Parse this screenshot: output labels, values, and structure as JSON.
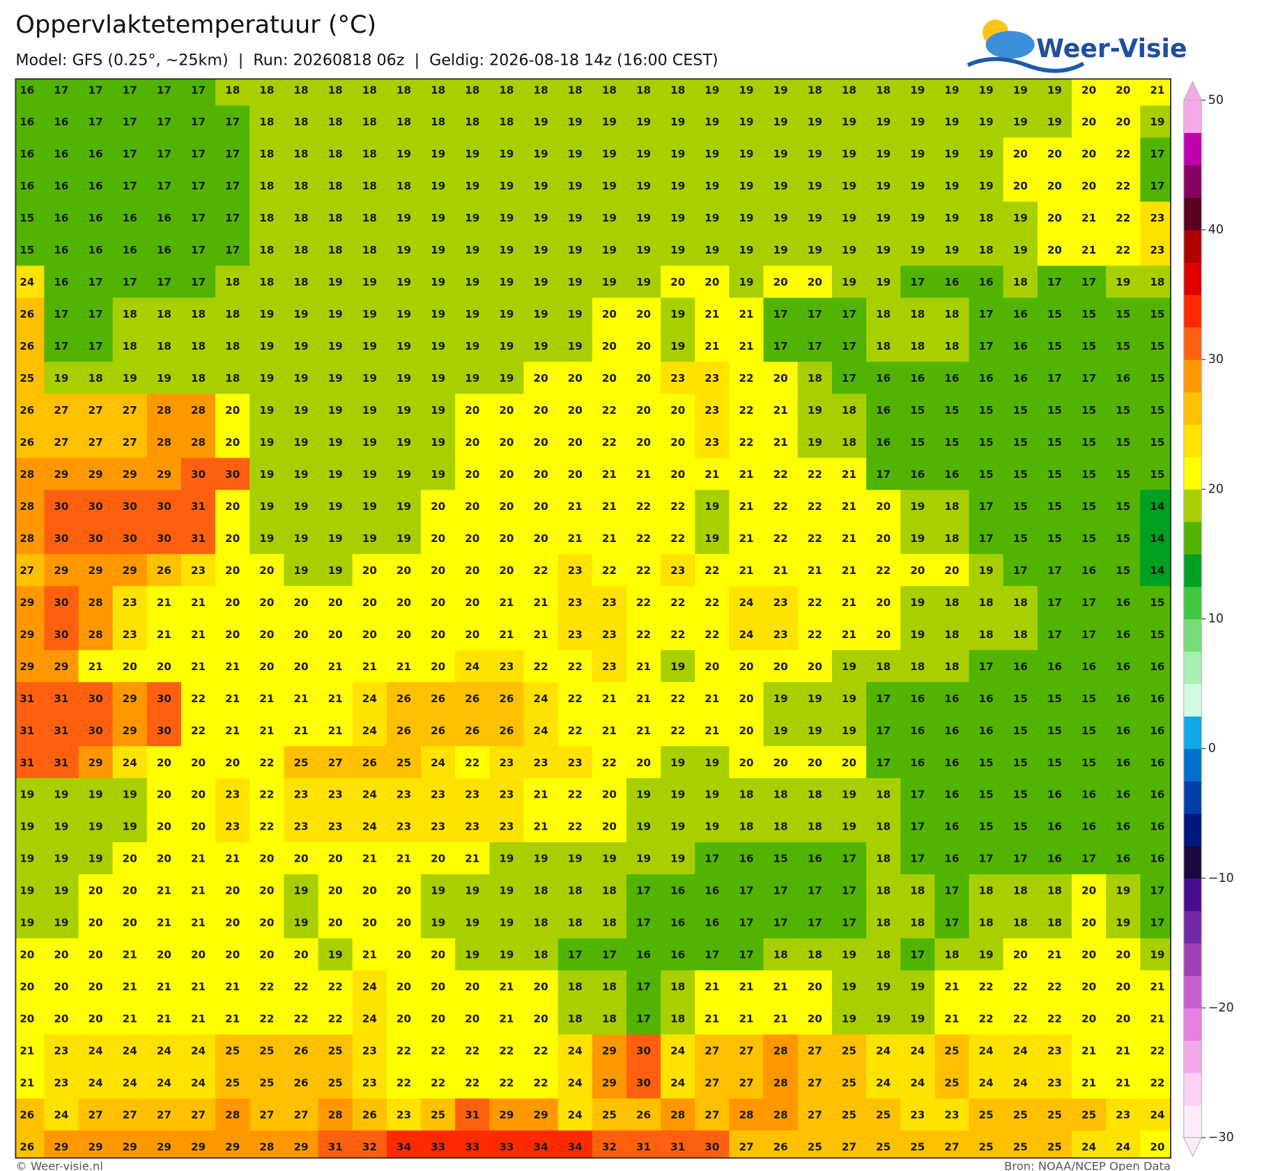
{
  "header": {
    "title": "Oppervlaktetemperatuur (°C)",
    "subtitle": "Model: GFS (0.25°, ~25km)  |  Run: 20260818 06z  |  Geldig: 2026-08-18 14z (16:00 CEST)",
    "logo": "Weer-Visie"
  },
  "grid": {
    "rows": [
      [
        16,
        17,
        17,
        17,
        17,
        17,
        18,
        18,
        18,
        18,
        18,
        18,
        18,
        18,
        18,
        18,
        18,
        18,
        18,
        18,
        19,
        19,
        19,
        18,
        18,
        18,
        19,
        19,
        19,
        19,
        19,
        20,
        20,
        21
      ],
      [
        16,
        16,
        17,
        17,
        17,
        17,
        17,
        18,
        18,
        18,
        18,
        18,
        18,
        18,
        18,
        19,
        19,
        19,
        19,
        19,
        19,
        19,
        19,
        19,
        19,
        19,
        19,
        19,
        19,
        19,
        19,
        20,
        20,
        19
      ],
      [
        16,
        16,
        16,
        17,
        17,
        17,
        17,
        18,
        18,
        18,
        18,
        19,
        19,
        19,
        19,
        19,
        19,
        19,
        19,
        19,
        19,
        19,
        19,
        19,
        19,
        19,
        19,
        19,
        19,
        20,
        20,
        20,
        22,
        17
      ],
      [
        16,
        16,
        16,
        17,
        17,
        17,
        17,
        18,
        18,
        18,
        18,
        18,
        19,
        19,
        19,
        19,
        19,
        19,
        19,
        19,
        19,
        19,
        19,
        19,
        19,
        19,
        19,
        19,
        19,
        20,
        20,
        20,
        22,
        17
      ],
      [
        15,
        16,
        16,
        16,
        16,
        17,
        17,
        18,
        18,
        18,
        18,
        19,
        19,
        19,
        19,
        19,
        19,
        19,
        19,
        19,
        19,
        19,
        19,
        19,
        19,
        19,
        19,
        19,
        18,
        19,
        20,
        21,
        22,
        23
      ],
      [
        15,
        16,
        16,
        16,
        16,
        17,
        17,
        18,
        18,
        18,
        18,
        19,
        19,
        19,
        19,
        19,
        19,
        19,
        19,
        19,
        19,
        19,
        19,
        19,
        19,
        19,
        19,
        19,
        18,
        19,
        20,
        21,
        22,
        23
      ],
      [
        24,
        16,
        17,
        17,
        17,
        17,
        18,
        18,
        18,
        19,
        19,
        19,
        19,
        19,
        19,
        19,
        19,
        19,
        19,
        20,
        20,
        19,
        20,
        20,
        19,
        19,
        17,
        16,
        16,
        18,
        17,
        17,
        19,
        18
      ],
      [
        26,
        17,
        17,
        18,
        18,
        18,
        18,
        19,
        19,
        19,
        19,
        19,
        19,
        19,
        19,
        19,
        19,
        20,
        20,
        19,
        21,
        21,
        17,
        17,
        17,
        18,
        18,
        18,
        17,
        16,
        15,
        15,
        15,
        15
      ],
      [
        26,
        17,
        17,
        18,
        18,
        18,
        18,
        19,
        19,
        19,
        19,
        19,
        19,
        19,
        19,
        19,
        19,
        20,
        20,
        19,
        21,
        21,
        17,
        17,
        17,
        18,
        18,
        18,
        17,
        16,
        15,
        15,
        15,
        15
      ],
      [
        25,
        19,
        18,
        19,
        19,
        18,
        18,
        19,
        19,
        19,
        19,
        19,
        19,
        19,
        19,
        20,
        20,
        20,
        20,
        23,
        23,
        22,
        20,
        18,
        17,
        16,
        16,
        16,
        16,
        16,
        17,
        17,
        16,
        15
      ],
      [
        26,
        27,
        27,
        27,
        28,
        28,
        20,
        19,
        19,
        19,
        19,
        19,
        19,
        20,
        20,
        20,
        20,
        22,
        20,
        20,
        23,
        22,
        21,
        19,
        18,
        16,
        15,
        15,
        15,
        15,
        15,
        15,
        15,
        15
      ],
      [
        26,
        27,
        27,
        27,
        28,
        28,
        20,
        19,
        19,
        19,
        19,
        19,
        19,
        20,
        20,
        20,
        20,
        22,
        20,
        20,
        23,
        22,
        21,
        19,
        18,
        16,
        15,
        15,
        15,
        15,
        15,
        15,
        15,
        15
      ],
      [
        28,
        29,
        29,
        29,
        29,
        30,
        30,
        19,
        19,
        19,
        19,
        19,
        19,
        20,
        20,
        20,
        20,
        21,
        21,
        20,
        21,
        21,
        22,
        22,
        21,
        17,
        16,
        16,
        15,
        15,
        15,
        15,
        15,
        15
      ],
      [
        28,
        30,
        30,
        30,
        30,
        31,
        20,
        19,
        19,
        19,
        19,
        19,
        20,
        20,
        20,
        20,
        21,
        21,
        22,
        22,
        19,
        21,
        22,
        22,
        21,
        20,
        19,
        18,
        17,
        15,
        15,
        15,
        15,
        14
      ],
      [
        28,
        30,
        30,
        30,
        30,
        31,
        20,
        19,
        19,
        19,
        19,
        19,
        20,
        20,
        20,
        20,
        21,
        21,
        22,
        22,
        19,
        21,
        22,
        22,
        21,
        20,
        19,
        18,
        17,
        15,
        15,
        15,
        15,
        14
      ],
      [
        27,
        29,
        29,
        29,
        26,
        23,
        20,
        20,
        19,
        19,
        20,
        20,
        20,
        20,
        20,
        22,
        23,
        22,
        22,
        23,
        22,
        21,
        21,
        21,
        21,
        22,
        20,
        20,
        19,
        17,
        17,
        16,
        15,
        14
      ],
      [
        29,
        30,
        28,
        23,
        21,
        21,
        20,
        20,
        20,
        20,
        20,
        20,
        20,
        20,
        21,
        21,
        23,
        23,
        22,
        22,
        22,
        24,
        23,
        22,
        21,
        20,
        19,
        18,
        18,
        18,
        17,
        17,
        16,
        15
      ],
      [
        29,
        30,
        28,
        23,
        21,
        21,
        20,
        20,
        20,
        20,
        20,
        20,
        20,
        20,
        21,
        21,
        23,
        23,
        22,
        22,
        22,
        24,
        23,
        22,
        21,
        20,
        19,
        18,
        18,
        18,
        17,
        17,
        16,
        15
      ],
      [
        29,
        29,
        21,
        20,
        20,
        21,
        21,
        20,
        20,
        21,
        21,
        21,
        20,
        24,
        23,
        22,
        22,
        23,
        21,
        19,
        20,
        20,
        20,
        20,
        19,
        18,
        18,
        18,
        17,
        16,
        16,
        16,
        16,
        16
      ],
      [
        31,
        31,
        30,
        29,
        30,
        22,
        21,
        21,
        21,
        21,
        24,
        26,
        26,
        26,
        26,
        24,
        22,
        21,
        21,
        22,
        21,
        20,
        19,
        19,
        19,
        17,
        16,
        16,
        16,
        15,
        15,
        15,
        16,
        16
      ],
      [
        31,
        31,
        30,
        29,
        30,
        22,
        21,
        21,
        21,
        21,
        24,
        26,
        26,
        26,
        26,
        24,
        22,
        21,
        21,
        22,
        21,
        20,
        19,
        19,
        19,
        17,
        16,
        16,
        16,
        15,
        15,
        15,
        16,
        16
      ],
      [
        31,
        31,
        29,
        24,
        20,
        20,
        20,
        22,
        25,
        27,
        26,
        25,
        24,
        22,
        23,
        23,
        23,
        22,
        20,
        19,
        19,
        20,
        20,
        20,
        20,
        17,
        16,
        16,
        15,
        15,
        15,
        15,
        16,
        16
      ],
      [
        19,
        19,
        19,
        19,
        20,
        20,
        23,
        22,
        23,
        23,
        24,
        23,
        23,
        23,
        23,
        21,
        22,
        20,
        19,
        19,
        19,
        18,
        18,
        18,
        19,
        18,
        17,
        16,
        15,
        15,
        16,
        16,
        16,
        16
      ],
      [
        19,
        19,
        19,
        19,
        20,
        20,
        23,
        22,
        23,
        23,
        24,
        23,
        23,
        23,
        23,
        21,
        22,
        20,
        19,
        19,
        19,
        18,
        18,
        18,
        19,
        18,
        17,
        16,
        15,
        15,
        16,
        16,
        16,
        16
      ],
      [
        19,
        19,
        19,
        20,
        20,
        21,
        21,
        20,
        20,
        20,
        21,
        21,
        20,
        21,
        19,
        19,
        19,
        19,
        19,
        19,
        17,
        16,
        15,
        16,
        17,
        18,
        17,
        16,
        17,
        17,
        16,
        17,
        16,
        16
      ],
      [
        19,
        19,
        20,
        20,
        21,
        21,
        20,
        20,
        19,
        20,
        20,
        20,
        19,
        19,
        19,
        18,
        18,
        18,
        17,
        16,
        16,
        17,
        17,
        17,
        17,
        18,
        18,
        17,
        18,
        18,
        18,
        20,
        19,
        17
      ],
      [
        19,
        19,
        20,
        20,
        21,
        21,
        20,
        20,
        19,
        20,
        20,
        20,
        19,
        19,
        19,
        18,
        18,
        18,
        17,
        16,
        16,
        17,
        17,
        17,
        17,
        18,
        18,
        17,
        18,
        18,
        18,
        20,
        19,
        17
      ],
      [
        20,
        20,
        20,
        21,
        20,
        20,
        20,
        20,
        20,
        19,
        21,
        20,
        20,
        19,
        19,
        18,
        17,
        17,
        16,
        16,
        17,
        17,
        18,
        18,
        19,
        18,
        17,
        18,
        19,
        20,
        21,
        20,
        20,
        19
      ],
      [
        20,
        20,
        20,
        21,
        21,
        21,
        21,
        22,
        22,
        22,
        24,
        20,
        20,
        20,
        21,
        20,
        18,
        18,
        17,
        18,
        21,
        21,
        21,
        20,
        19,
        19,
        19,
        21,
        22,
        22,
        22,
        20,
        20,
        21
      ],
      [
        20,
        20,
        20,
        21,
        21,
        21,
        21,
        22,
        22,
        22,
        24,
        20,
        20,
        20,
        21,
        20,
        18,
        18,
        17,
        18,
        21,
        21,
        21,
        20,
        19,
        19,
        19,
        21,
        22,
        22,
        22,
        20,
        20,
        21
      ],
      [
        21,
        23,
        24,
        24,
        24,
        24,
        25,
        25,
        26,
        25,
        23,
        22,
        22,
        22,
        22,
        22,
        24,
        29,
        30,
        24,
        27,
        27,
        28,
        27,
        25,
        24,
        24,
        25,
        24,
        24,
        23,
        21,
        21,
        22
      ],
      [
        21,
        23,
        24,
        24,
        24,
        24,
        25,
        25,
        26,
        25,
        23,
        22,
        22,
        22,
        22,
        22,
        24,
        29,
        30,
        24,
        27,
        27,
        28,
        27,
        25,
        24,
        24,
        25,
        24,
        24,
        23,
        21,
        21,
        22
      ],
      [
        26,
        24,
        27,
        27,
        27,
        27,
        28,
        27,
        27,
        28,
        26,
        23,
        25,
        31,
        29,
        29,
        24,
        25,
        26,
        28,
        27,
        28,
        28,
        27,
        25,
        25,
        23,
        23,
        25,
        25,
        25,
        25,
        23,
        24
      ],
      [
        26,
        29,
        29,
        29,
        29,
        29,
        29,
        28,
        29,
        31,
        32,
        34,
        33,
        33,
        33,
        34,
        34,
        32,
        31,
        31,
        30,
        27,
        26,
        25,
        27,
        25,
        25,
        27,
        25,
        25,
        25,
        24,
        24,
        20
      ]
    ]
  },
  "colorbar": {
    "lim": [
      -30,
      50
    ],
    "ticks": [
      50,
      40,
      30,
      20,
      10,
      0,
      {
        "value": -10,
        "label": "−10"
      },
      {
        "value": -20,
        "label": "−20"
      },
      {
        "value": -30,
        "label": "−30"
      }
    ],
    "colors": [
      "#fdeafa",
      "#fcd0f4",
      "#f4a8ec",
      "#e480e0",
      "#c860d0",
      "#a040b8",
      "#7028a8",
      "#4a0c90",
      "#1a0a40",
      "#001880",
      "#0040a8",
      "#0070d0",
      "#10a8e8",
      "#d0fce0",
      "#a8f0b0",
      "#78dc78",
      "#40c840",
      "#00a020",
      "#50b400",
      "#a8d000",
      "#ffff00",
      "#ffe200",
      "#ffc000",
      "#ff9800",
      "#ff6010",
      "#ff2a00",
      "#e00000",
      "#b00000",
      "#5a0020",
      "#880060",
      "#c000b0",
      "#f8a8e8"
    ]
  },
  "footer": {
    "left": "© Weer-visie.nl",
    "right": "Bron: NOAA/NCEP Open Data"
  }
}
